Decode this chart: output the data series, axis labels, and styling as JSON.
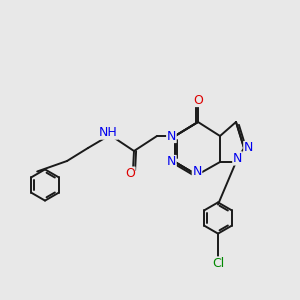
{
  "bg_color": "#e8e8e8",
  "bond_color": "#1a1a1a",
  "N_color": "#0000ee",
  "O_color": "#dd0000",
  "Cl_color": "#008800",
  "figsize": [
    3.0,
    3.0
  ],
  "dpi": 100,
  "xlim": [
    0,
    10
  ],
  "ylim": [
    0,
    10
  ]
}
